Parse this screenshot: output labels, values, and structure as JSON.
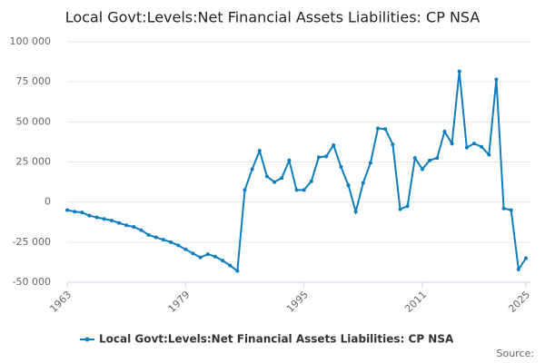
{
  "chart_data": {
    "type": "line",
    "title": "Local Govt:Levels:Net Financial Assets Liabilities: CP NSA",
    "source": "Source:",
    "x": [
      1963,
      1964,
      1965,
      1966,
      1967,
      1968,
      1969,
      1970,
      1971,
      1972,
      1973,
      1974,
      1975,
      1976,
      1977,
      1978,
      1979,
      1980,
      1981,
      1982,
      1983,
      1984,
      1985,
      1986,
      1987,
      1988,
      1989,
      1990,
      1991,
      1992,
      1993,
      1994,
      1995,
      1996,
      1997,
      1998,
      1999,
      2000,
      2001,
      2002,
      2003,
      2004,
      2005,
      2006,
      2007,
      2008,
      2009,
      2010,
      2011,
      2012,
      2013,
      2014,
      2015,
      2016,
      2017,
      2018,
      2019,
      2020,
      2021,
      2022,
      2023,
      2024,
      2025
    ],
    "series": [
      {
        "name": "Local Govt:Levels:Net Financial Assets Liabilities: CP NSA",
        "color": "#0f7dbd",
        "values": [
          -5000,
          -6000,
          -6500,
          -8500,
          -9500,
          -10500,
          -11500,
          -13000,
          -14500,
          -15500,
          -17500,
          -20500,
          -22000,
          -23500,
          -25000,
          -27000,
          -29500,
          -32000,
          -34500,
          -32500,
          -34000,
          -36500,
          -39500,
          -43000,
          7500,
          20500,
          32000,
          16000,
          12500,
          15000,
          26000,
          7500,
          7500,
          13000,
          28000,
          28500,
          35500,
          22000,
          10500,
          -6000,
          12000,
          24500,
          46000,
          45500,
          36000,
          -4500,
          -2500,
          27500,
          20500,
          26000,
          27500,
          44000,
          36500,
          81500,
          34000,
          36500,
          34500,
          29500,
          76500,
          -4000,
          -5000,
          -42000,
          -35000
        ]
      }
    ],
    "xlim": [
      1963,
      2025
    ],
    "xticks": [
      1963,
      1979,
      1995,
      2011,
      2025
    ],
    "ylim": [
      -50000,
      100000
    ],
    "yticks": [
      {
        "value": -50000,
        "label": "-50 000"
      },
      {
        "value": -25000,
        "label": "-25 000"
      },
      0,
      {
        "value": 25000,
        "label": "25 000"
      },
      {
        "value": 50000,
        "label": "50 000"
      },
      {
        "value": 75000,
        "label": "75 000"
      },
      {
        "value": 100000,
        "label": "100 000"
      }
    ],
    "grid": true
  }
}
